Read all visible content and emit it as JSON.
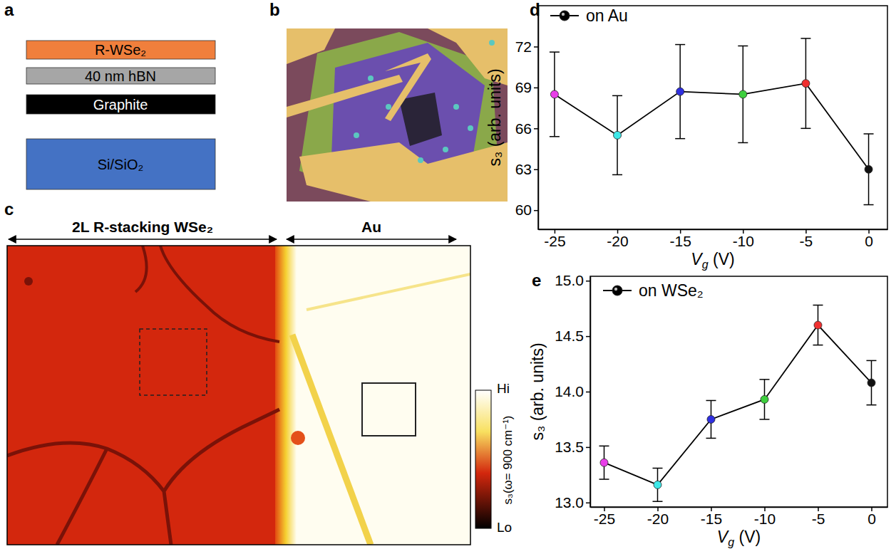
{
  "panels": {
    "a": {
      "letter": "a",
      "layers": [
        {
          "label": "R-WSe₂",
          "color": "#f07f3c"
        },
        {
          "label": "40 nm hBN",
          "color": "#a6a6a6"
        },
        {
          "label": "Graphite",
          "color": "#000000"
        },
        {
          "label": "Si/SiO₂",
          "color": "#4472c4"
        }
      ]
    },
    "b": {
      "letter": "b"
    },
    "c": {
      "letter": "c",
      "regions": [
        "2L R-stacking WSe₂",
        "Au"
      ],
      "colorbar": {
        "label": "s₃(ω= 900 cm⁻¹)",
        "high": "Hi",
        "low": "Lo"
      }
    }
  },
  "chart_data": [
    {
      "type": "line",
      "panel_letter": "d",
      "x_label": "Vg (V)",
      "y_label": "s₃ (arb. units)",
      "x": [
        -25,
        -20,
        -15,
        -10,
        -5,
        0
      ],
      "series": [
        {
          "name": "on Au",
          "color": "#000000",
          "marker": "circle",
          "colors": [
            "#e83ee8",
            "#3ee8e8",
            "#2f2fe0",
            "#3ecf3e",
            "#f03030",
            "#111111"
          ],
          "values": [
            68.5,
            65.5,
            68.7,
            68.5,
            69.3,
            63.0
          ],
          "errors": [
            3.1,
            2.9,
            3.45,
            3.55,
            3.3,
            2.6
          ]
        }
      ],
      "xlim": [
        -26.3,
        1.5
      ],
      "ylim": [
        58.6,
        75
      ],
      "xticks": [
        -25,
        -20,
        -15,
        -10,
        -5,
        0
      ],
      "yticks": [
        60,
        63,
        66,
        69,
        72
      ],
      "legend": "upper left"
    },
    {
      "type": "line",
      "panel_letter": "e",
      "x_label": "Vg (V)",
      "y_label": "s₃ (arb. units)",
      "x": [
        -25,
        -20,
        -15,
        -10,
        -5,
        0
      ],
      "series": [
        {
          "name": "on WSe₂",
          "color": "#000000",
          "marker": "circle",
          "colors": [
            "#e83ee8",
            "#3ee8e8",
            "#2f2fe0",
            "#3ecf3e",
            "#f03030",
            "#111111"
          ],
          "values": [
            13.36,
            13.16,
            13.75,
            13.93,
            14.6,
            14.08
          ],
          "errors": [
            0.15,
            0.15,
            0.17,
            0.18,
            0.18,
            0.2
          ]
        }
      ],
      "xlim": [
        -26.3,
        1.5
      ],
      "ylim": [
        12.96,
        15.04
      ],
      "xticks": [
        -25,
        -20,
        -15,
        -10,
        -5,
        0
      ],
      "yticks": [
        {
          "value": 13,
          "label": "13.0"
        },
        {
          "value": 13.5,
          "label": "13.5"
        },
        {
          "value": 14,
          "label": "14.0"
        },
        {
          "value": 14.5,
          "label": "14.5"
        },
        {
          "value": 15,
          "label": "15.0"
        }
      ],
      "legend": "upper left"
    }
  ]
}
